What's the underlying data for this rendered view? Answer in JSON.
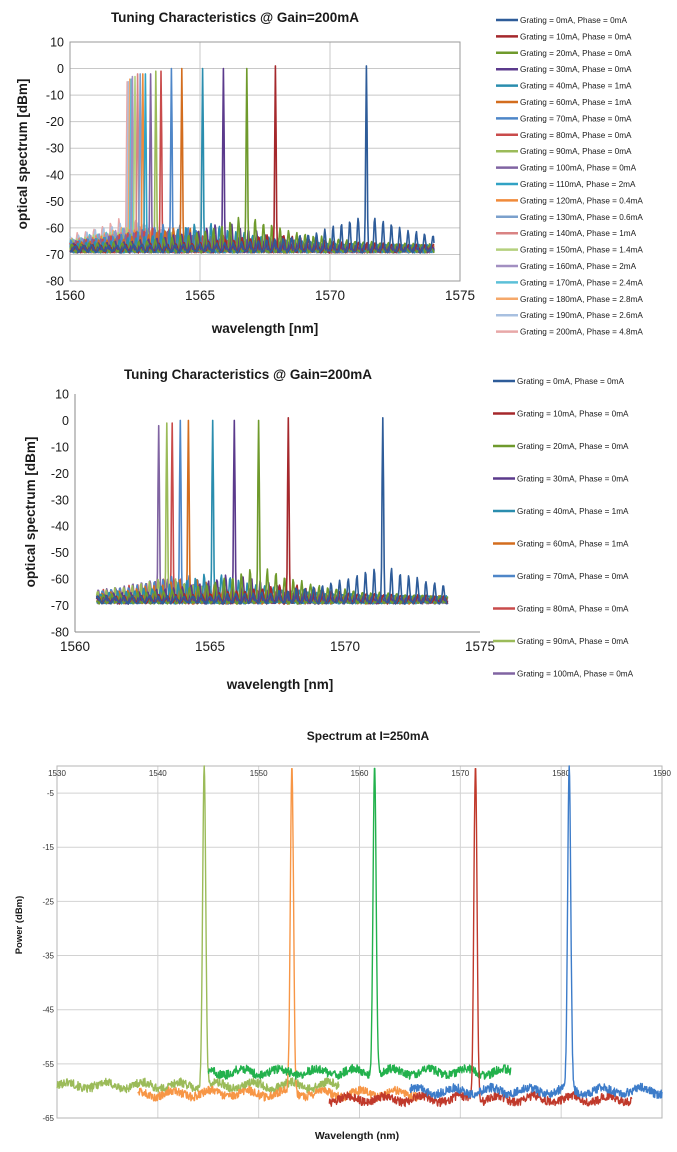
{
  "chart_data": [
    {
      "type": "line",
      "title": "Tuning Characteristics @ Gain=200mA",
      "xlabel": "wavelength [nm]",
      "ylabel": "optical spectrum [dBm]",
      "xlim": [
        1560,
        1575
      ],
      "ylim": [
        -80,
        10
      ],
      "x_ticks": [
        1560,
        1565,
        1570,
        1575
      ],
      "y_ticks": [
        10,
        0,
        -10,
        -20,
        -30,
        -40,
        -50,
        -60,
        -70,
        -80
      ],
      "grid": true,
      "legend": "right",
      "spectrum_x_range": [
        1560,
        1574
      ],
      "floor_dbm": -69,
      "series": [
        {
          "name": "Grating = 0mA, Phase = 0mA",
          "color": "#2E5C99",
          "peak_x": 1571.4,
          "peak_y": 1,
          "side_y": -46
        },
        {
          "name": "Grating = 10mA, Phase = 0mA",
          "color": "#A5282C",
          "peak_x": 1567.9,
          "peak_y": 1,
          "side_y": -60
        },
        {
          "name": "Grating = 20mA, Phase = 0mA",
          "color": "#6F9A2C",
          "peak_x": 1566.8,
          "peak_y": 0,
          "side_y": -47
        },
        {
          "name": "Grating = 30mA, Phase = 0mA",
          "color": "#5B3A8C",
          "peak_x": 1565.9,
          "peak_y": 0,
          "side_y": -52
        },
        {
          "name": "Grating = 40mA, Phase = 1mA",
          "color": "#2A8DAE",
          "peak_x": 1565.1,
          "peak_y": 0,
          "side_y": -51
        },
        {
          "name": "Grating = 60mA, Phase = 1mA",
          "color": "#D36D1E",
          "peak_x": 1564.3,
          "peak_y": 0,
          "side_y": -55
        },
        {
          "name": "Grating = 70mA, Phase = 0mA",
          "color": "#4E86C8",
          "peak_x": 1563.9,
          "peak_y": 0,
          "side_y": -52
        },
        {
          "name": "Grating = 80mA, Phase = 0mA",
          "color": "#C94B4B",
          "peak_x": 1563.5,
          "peak_y": -1,
          "side_y": -54
        },
        {
          "name": "Grating = 90mA, Phase = 0mA",
          "color": "#9BBB59",
          "peak_x": 1563.3,
          "peak_y": -1,
          "side_y": -56
        },
        {
          "name": "Grating = 100mA, Phase = 0mA",
          "color": "#8064A2",
          "peak_x": 1563.1,
          "peak_y": -2,
          "side_y": -56
        },
        {
          "name": "Grating = 110mA, Phase = 2mA",
          "color": "#31A2C4",
          "peak_x": 1562.9,
          "peak_y": -2,
          "side_y": -57
        },
        {
          "name": "Grating = 120mA, Phase = 0.4mA",
          "color": "#F08A3A",
          "peak_x": 1562.8,
          "peak_y": -2,
          "side_y": -57
        },
        {
          "name": "Grating = 130mA, Phase = 0.6mA",
          "color": "#7BA0CC",
          "peak_x": 1562.7,
          "peak_y": -2,
          "side_y": -56
        },
        {
          "name": "Grating = 140mA, Phase = 1mA",
          "color": "#D98383",
          "peak_x": 1562.6,
          "peak_y": -2,
          "side_y": -56
        },
        {
          "name": "Grating = 150mA, Phase = 1.4mA",
          "color": "#B5D07E",
          "peak_x": 1562.5,
          "peak_y": -3,
          "side_y": -55
        },
        {
          "name": "Grating = 160mA, Phase = 2mA",
          "color": "#A28FC1",
          "peak_x": 1562.4,
          "peak_y": -3,
          "side_y": -55
        },
        {
          "name": "Grating = 170mA, Phase = 2.4mA",
          "color": "#5CC0D8",
          "peak_x": 1562.35,
          "peak_y": -4,
          "side_y": -54
        },
        {
          "name": "Grating = 180mA, Phase = 2.8mA",
          "color": "#F5A86A",
          "peak_x": 1562.3,
          "peak_y": -4,
          "side_y": -54
        },
        {
          "name": "Grating = 190mA, Phase = 2.6mA",
          "color": "#A8C0E0",
          "peak_x": 1562.25,
          "peak_y": -5,
          "side_y": -50
        },
        {
          "name": "Grating = 200mA, Phase = 4.8mA",
          "color": "#E8A8A8",
          "peak_x": 1562.2,
          "peak_y": -5,
          "side_y": -48
        }
      ]
    },
    {
      "type": "line",
      "title": "Tuning Characteristics @ Gain=200mA",
      "xlabel": "wavelength [nm]",
      "ylabel": "optical spectrum [dBm]",
      "xlim": [
        1560,
        1575
      ],
      "ylim": [
        -80,
        10
      ],
      "x_ticks": [
        1560,
        1565,
        1570,
        1575
      ],
      "y_ticks": [
        10,
        0,
        -10,
        -20,
        -30,
        -40,
        -50,
        -60,
        -70,
        -80
      ],
      "grid": false,
      "legend": "right",
      "spectrum_x_range": [
        1560.8,
        1573.8
      ],
      "floor_dbm": -69,
      "series": [
        {
          "name": "Grating = 0mA, Phase = 0mA",
          "color": "#2E5C99",
          "peak_x": 1571.4,
          "peak_y": 1,
          "side_y": -46
        },
        {
          "name": "Grating = 10mA, Phase = 0mA",
          "color": "#A5282C",
          "peak_x": 1567.9,
          "peak_y": 1,
          "side_y": -60
        },
        {
          "name": "Grating = 20mA, Phase = 0mA",
          "color": "#6F9A2C",
          "peak_x": 1566.8,
          "peak_y": 0,
          "side_y": -47
        },
        {
          "name": "Grating = 30mA, Phase = 0mA",
          "color": "#5B3A8C",
          "peak_x": 1565.9,
          "peak_y": 0,
          "side_y": -52
        },
        {
          "name": "Grating = 40mA, Phase = 1mA",
          "color": "#2A8DAE",
          "peak_x": 1565.1,
          "peak_y": 0,
          "side_y": -51
        },
        {
          "name": "Grating = 60mA, Phase = 1mA",
          "color": "#D36D1E",
          "peak_x": 1564.2,
          "peak_y": 0,
          "side_y": -55
        },
        {
          "name": "Grating = 70mA, Phase = 0mA",
          "color": "#4E86C8",
          "peak_x": 1563.9,
          "peak_y": 0,
          "side_y": -52
        },
        {
          "name": "Grating = 80mA, Phase = 0mA",
          "color": "#C94B4B",
          "peak_x": 1563.6,
          "peak_y": -1,
          "side_y": -54
        },
        {
          "name": "Grating = 90mA, Phase = 0mA",
          "color": "#9BBB59",
          "peak_x": 1563.4,
          "peak_y": -1,
          "side_y": -55
        },
        {
          "name": "Grating = 100mA, Phase = 0mA",
          "color": "#8064A2",
          "peak_x": 1563.1,
          "peak_y": -2,
          "side_y": -55
        }
      ]
    },
    {
      "type": "line",
      "title": "Spectrum at I=250mA",
      "xlabel": "Wavelength (nm)",
      "ylabel": "Power (dBm)",
      "xlim": [
        1530,
        1590
      ],
      "ylim": [
        -65,
        0
      ],
      "x_ticks": [
        1530,
        1540,
        1550,
        1560,
        1570,
        1580,
        1590
      ],
      "y_ticks": [
        -5,
        -15,
        -25,
        -35,
        -45,
        -55,
        -65
      ],
      "grid": true,
      "legend": "none",
      "series": [
        {
          "color": "#9BBB59",
          "x_range": [
            1530,
            1558
          ],
          "floor_y": -59,
          "peak_x": 1544.6,
          "peak_y": 0
        },
        {
          "color": "#F79646",
          "x_range": [
            1538,
            1566
          ],
          "floor_y": -60.5,
          "peak_x": 1553.3,
          "peak_y": 0
        },
        {
          "color": "#22B14C",
          "x_range": [
            1545,
            1575
          ],
          "floor_y": -56.5,
          "peak_x": 1561.5,
          "peak_y": 0
        },
        {
          "color": "#C0392B",
          "x_range": [
            1557,
            1587
          ],
          "floor_y": -61.5,
          "peak_x": 1571.5,
          "peak_y": 0
        },
        {
          "color": "#3D7CC9",
          "x_range": [
            1565,
            1590
          ],
          "floor_y": -60,
          "peak_x": 1580.8,
          "peak_y": 0
        }
      ]
    }
  ]
}
